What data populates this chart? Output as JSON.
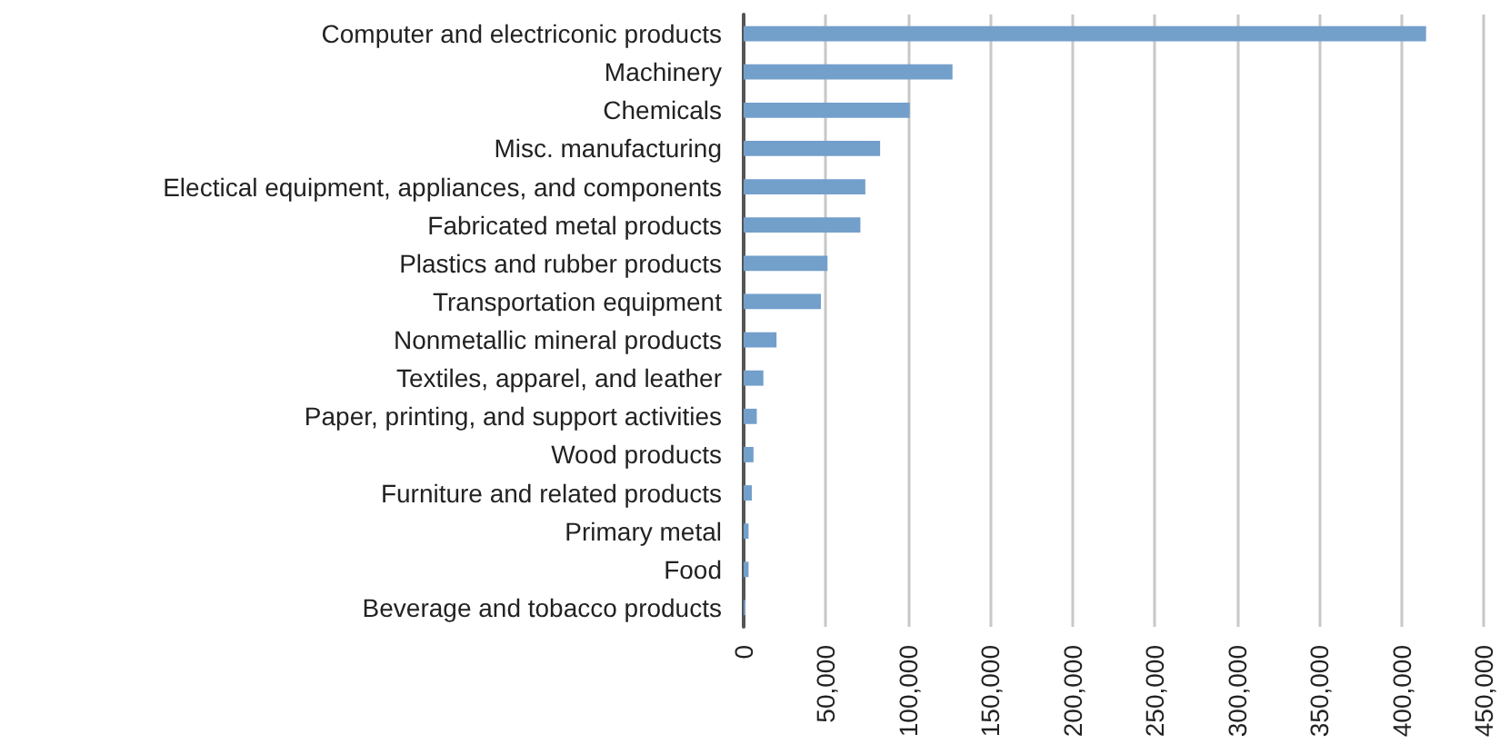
{
  "chart_data": {
    "type": "bar",
    "orientation": "horizontal",
    "categories": [
      "Computer and electriconic products",
      "Machinery",
      "Chemicals",
      "Misc. manufacturing",
      "Electical equipment, appliances, and components",
      "Fabricated metal products",
      "Plastics and rubber products",
      "Transportation equipment",
      "Nonmetallic mineral products",
      "Textiles, apparel, and leather",
      "Paper, printing, and support activities",
      "Wood products",
      "Furniture and related products",
      "Primary metal",
      "Food",
      "Beverage and tobacco products"
    ],
    "values": [
      415000,
      127000,
      101000,
      83000,
      74000,
      71000,
      51000,
      47000,
      20000,
      12000,
      8000,
      6000,
      5000,
      3000,
      3000,
      1000
    ],
    "color": "#739fcb",
    "xlim": [
      0,
      450000
    ],
    "xticks": [
      {
        "value": 0,
        "label": "0"
      },
      {
        "value": 50000,
        "label": "50,000"
      },
      {
        "value": 100000,
        "label": "100,000"
      },
      {
        "value": 150000,
        "label": "150,000"
      },
      {
        "value": 200000,
        "label": "200,000"
      },
      {
        "value": 250000,
        "label": "250,000"
      },
      {
        "value": 300000,
        "label": "300,000"
      },
      {
        "value": 350000,
        "label": "350,000"
      },
      {
        "value": 400000,
        "label": "400,000"
      },
      {
        "value": 450000,
        "label": "450,000"
      }
    ],
    "grid": "x"
  }
}
